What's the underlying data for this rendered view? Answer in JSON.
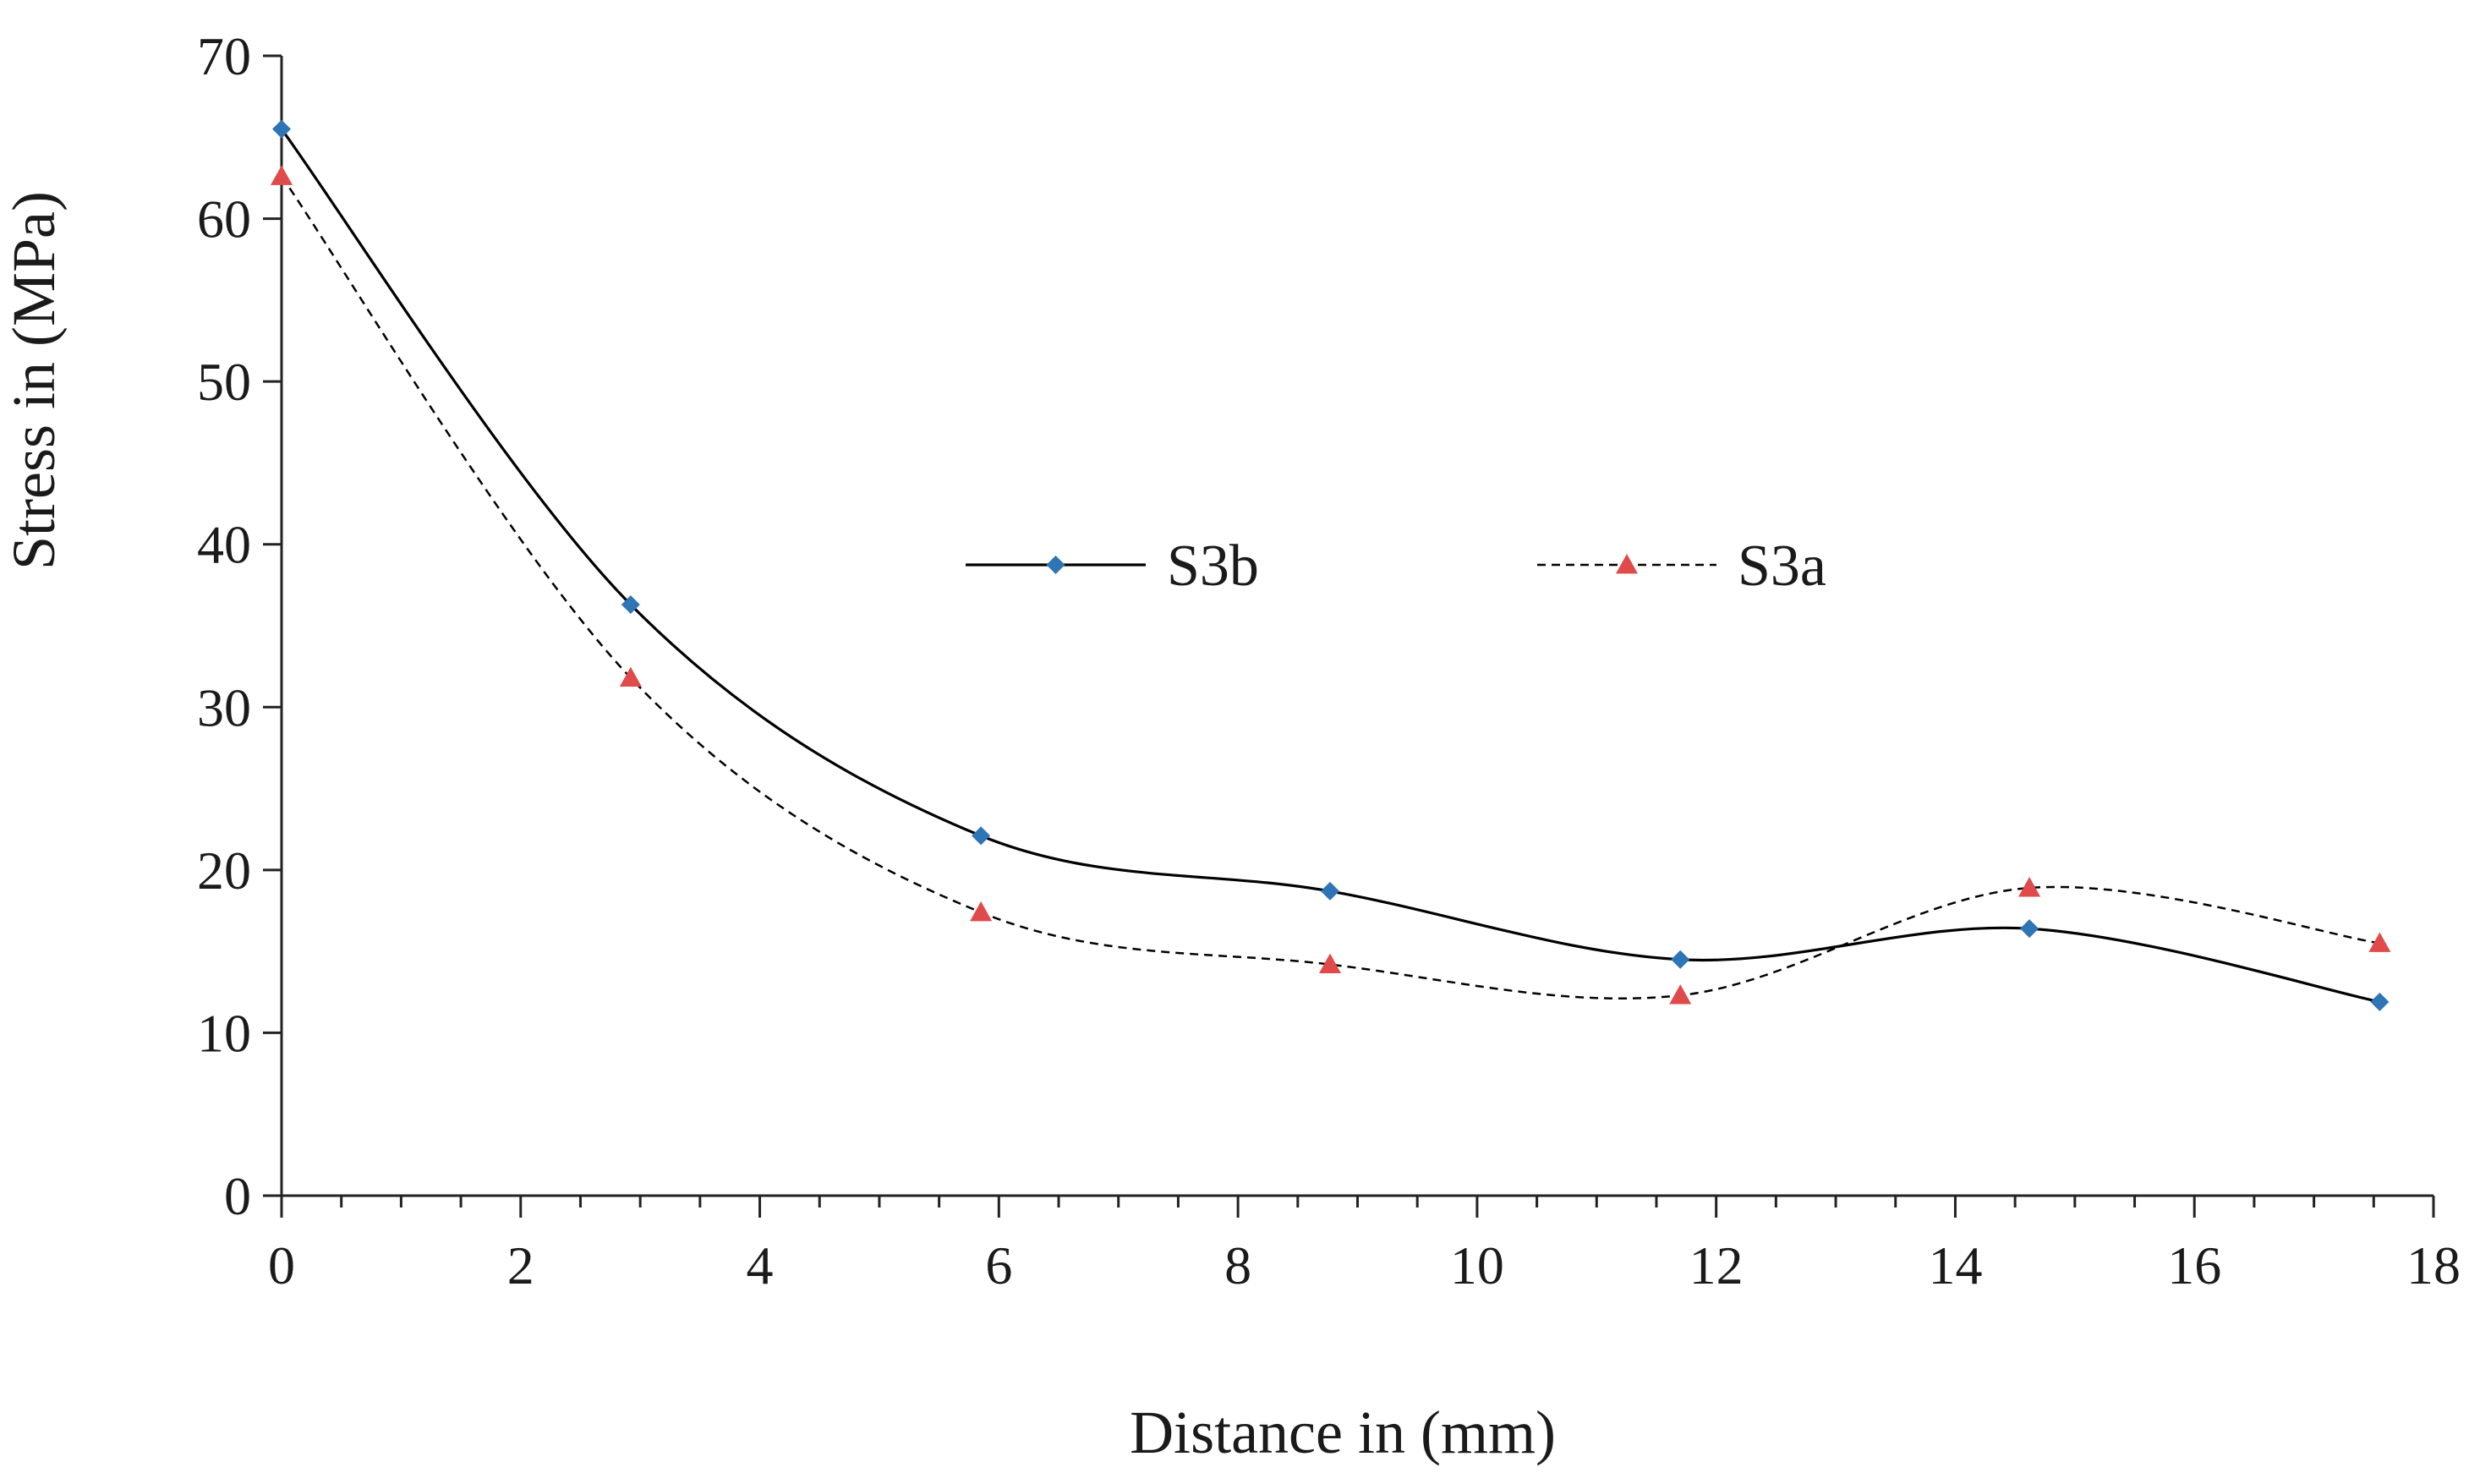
{
  "chart_data": {
    "type": "line",
    "title": "",
    "xlabel": "Distance in (mm)",
    "ylabel": "Stress in (MPa)",
    "xlim": [
      0,
      18
    ],
    "ylim": [
      0,
      70
    ],
    "xticks": [
      "0",
      "2",
      "4",
      "6",
      "8",
      "10",
      "12",
      "14",
      "16",
      "18"
    ],
    "yticks": [
      "0",
      "10",
      "20",
      "30",
      "40",
      "50",
      "60",
      "70"
    ],
    "xtick_values": [
      0,
      2,
      4,
      6,
      8,
      10,
      12,
      14,
      16,
      18
    ],
    "ytick_values": [
      0,
      10,
      20,
      30,
      40,
      50,
      60,
      70
    ],
    "x_minor_step": 0.5,
    "grid": false,
    "legend_position": "center",
    "x": [
      0,
      2.92,
      5.85,
      8.77,
      11.7,
      14.62,
      17.55
    ],
    "series": [
      {
        "name": "S3b",
        "values": [
          65.5,
          36.3,
          22.1,
          18.7,
          14.5,
          16.4,
          11.9
        ],
        "color": "#2e75b6",
        "line_color": "#000000",
        "line_style": "solid",
        "marker": "diamond"
      },
      {
        "name": "S3a",
        "values": [
          62.6,
          31.8,
          17.4,
          14.2,
          12.3,
          18.9,
          15.5
        ],
        "color": "#e04a4a",
        "line_color": "#000000",
        "line_style": "dashed",
        "marker": "triangle"
      }
    ]
  }
}
